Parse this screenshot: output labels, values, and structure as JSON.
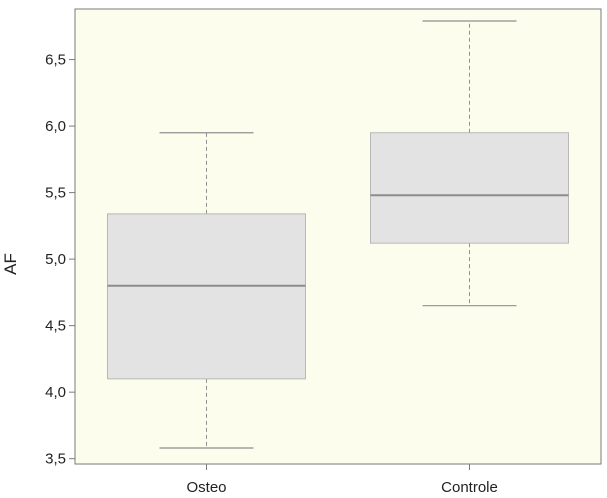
{
  "chart_data": {
    "type": "box",
    "categories": [
      "Osteo",
      "Controle"
    ],
    "boxes": [
      {
        "category": "Osteo",
        "whisker_low": 3.58,
        "q1": 4.1,
        "median": 4.8,
        "q3": 5.34,
        "whisker_high": 5.95
      },
      {
        "category": "Controle",
        "whisker_low": 4.65,
        "q1": 5.12,
        "median": 5.48,
        "q3": 5.95,
        "whisker_high": 6.79
      }
    ],
    "ylabel": "AF",
    "xlabel": "",
    "ylim": [
      3.46,
      6.88
    ],
    "yticks": [
      3.5,
      4.0,
      4.5,
      5.0,
      5.5,
      6.0,
      6.5
    ],
    "ytick_labels": [
      "3,5",
      "4,0",
      "4,5",
      "5,0",
      "5,5",
      "6,0",
      "6,5"
    ],
    "grid": false,
    "colors": {
      "plot_background": "#fdfdee",
      "box_fill": "#e3e3e3",
      "box_stroke": "#b8b8b8",
      "median": "#8c8c8c",
      "whisker": "#909090",
      "axis": "#7a7a7a"
    }
  }
}
